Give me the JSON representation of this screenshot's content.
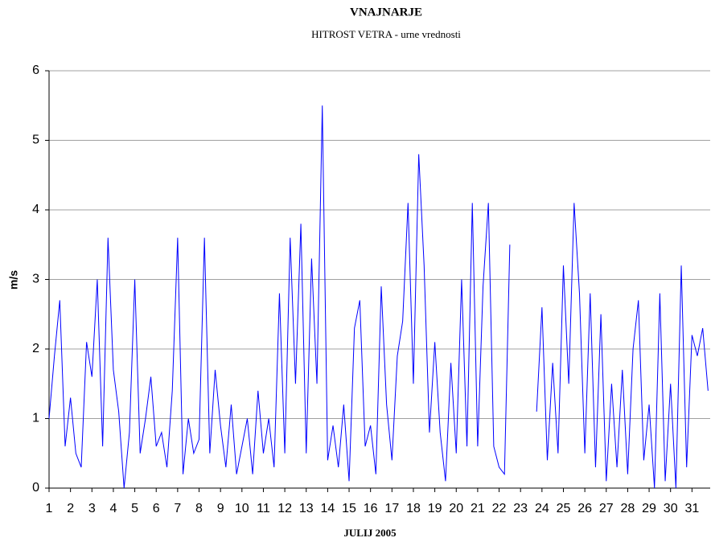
{
  "chart_data": {
    "type": "line",
    "title": "VNAJNARJE",
    "subtitle": "HITROST VETRA - urne vrednosti",
    "y_label": "m/s",
    "x_label": "JULIJ 2005",
    "xlim": [
      1,
      31.85
    ],
    "xticks": [
      1,
      2,
      3,
      4,
      5,
      6,
      7,
      8,
      9,
      10,
      11,
      12,
      13,
      14,
      15,
      16,
      17,
      18,
      19,
      20,
      21,
      22,
      23,
      24,
      25,
      26,
      27,
      28,
      29,
      30,
      31
    ],
    "ylim": [
      0,
      6
    ],
    "yticks": [
      0,
      1,
      2,
      3,
      4,
      5,
      6
    ],
    "grid": true,
    "series": [
      {
        "color": "#0000ff",
        "x": [
          1,
          1.25,
          1.5,
          1.75,
          2,
          2.25,
          2.5,
          2.75,
          3,
          3.25,
          3.5,
          3.75,
          4,
          4.25,
          4.5,
          4.75,
          5,
          5.25,
          5.5,
          5.75,
          6,
          6.25,
          6.5,
          6.75,
          7,
          7.25,
          7.5,
          7.75,
          8,
          8.25,
          8.5,
          8.75,
          9,
          9.25,
          9.5,
          9.75,
          10,
          10.25,
          10.5,
          10.75,
          11,
          11.25,
          11.5,
          11.75,
          12,
          12.25,
          12.5,
          12.75,
          13,
          13.25,
          13.5,
          13.75,
          14,
          14.25,
          14.5,
          14.75,
          15,
          15.25,
          15.5,
          15.75,
          16,
          16.25,
          16.5,
          16.75,
          17,
          17.25,
          17.5,
          17.75,
          18,
          18.25,
          18.5,
          18.75,
          19,
          19.25,
          19.5,
          19.75,
          20,
          20.25,
          20.5,
          20.75,
          21,
          21.25,
          21.5,
          21.75,
          22,
          22.25,
          22.5,
          22.75,
          23,
          23.25,
          23.5,
          23.75,
          24,
          24.25,
          24.5,
          24.75,
          25,
          25.25,
          25.5,
          25.75,
          26,
          26.25,
          26.5,
          26.75,
          27,
          27.25,
          27.5,
          27.75,
          28,
          28.25,
          28.5,
          28.75,
          29,
          29.25,
          29.5,
          29.75,
          30,
          30.25,
          30.5,
          30.75,
          31,
          31.25,
          31.5,
          31.75
        ],
        "values": [
          1.0,
          1.9,
          2.7,
          0.6,
          1.3,
          0.5,
          0.3,
          2.1,
          1.6,
          3.0,
          0.6,
          3.6,
          1.7,
          1.1,
          0.0,
          0.8,
          3.0,
          0.5,
          1.0,
          1.6,
          0.6,
          0.8,
          0.3,
          1.4,
          3.6,
          0.2,
          1.0,
          0.5,
          0.7,
          3.6,
          0.5,
          1.7,
          0.9,
          0.3,
          1.2,
          0.2,
          0.6,
          1.0,
          0.2,
          1.4,
          0.5,
          1.0,
          0.3,
          2.8,
          0.5,
          3.6,
          1.5,
          3.8,
          0.5,
          3.3,
          1.5,
          5.5,
          0.4,
          0.9,
          0.3,
          1.2,
          0.1,
          2.3,
          2.7,
          0.6,
          0.9,
          0.2,
          2.9,
          1.2,
          0.4,
          1.9,
          2.4,
          4.1,
          1.5,
          4.8,
          3.2,
          0.8,
          2.1,
          0.8,
          0.1,
          1.8,
          0.5,
          3.0,
          0.6,
          4.1,
          0.6,
          2.9,
          4.1,
          0.6,
          0.3,
          0.2,
          3.5,
          null,
          null,
          null,
          null,
          1.1,
          2.6,
          0.4,
          1.8,
          0.5,
          3.2,
          1.5,
          4.1,
          2.8,
          0.5,
          2.8,
          0.3,
          2.5,
          0.1,
          1.5,
          0.3,
          1.7,
          0.2,
          2.0,
          2.7,
          0.4,
          1.2,
          0.0,
          2.8,
          0.1,
          1.5,
          0.0,
          3.2,
          0.3,
          2.2,
          1.9,
          2.3,
          1.4
        ]
      }
    ]
  }
}
